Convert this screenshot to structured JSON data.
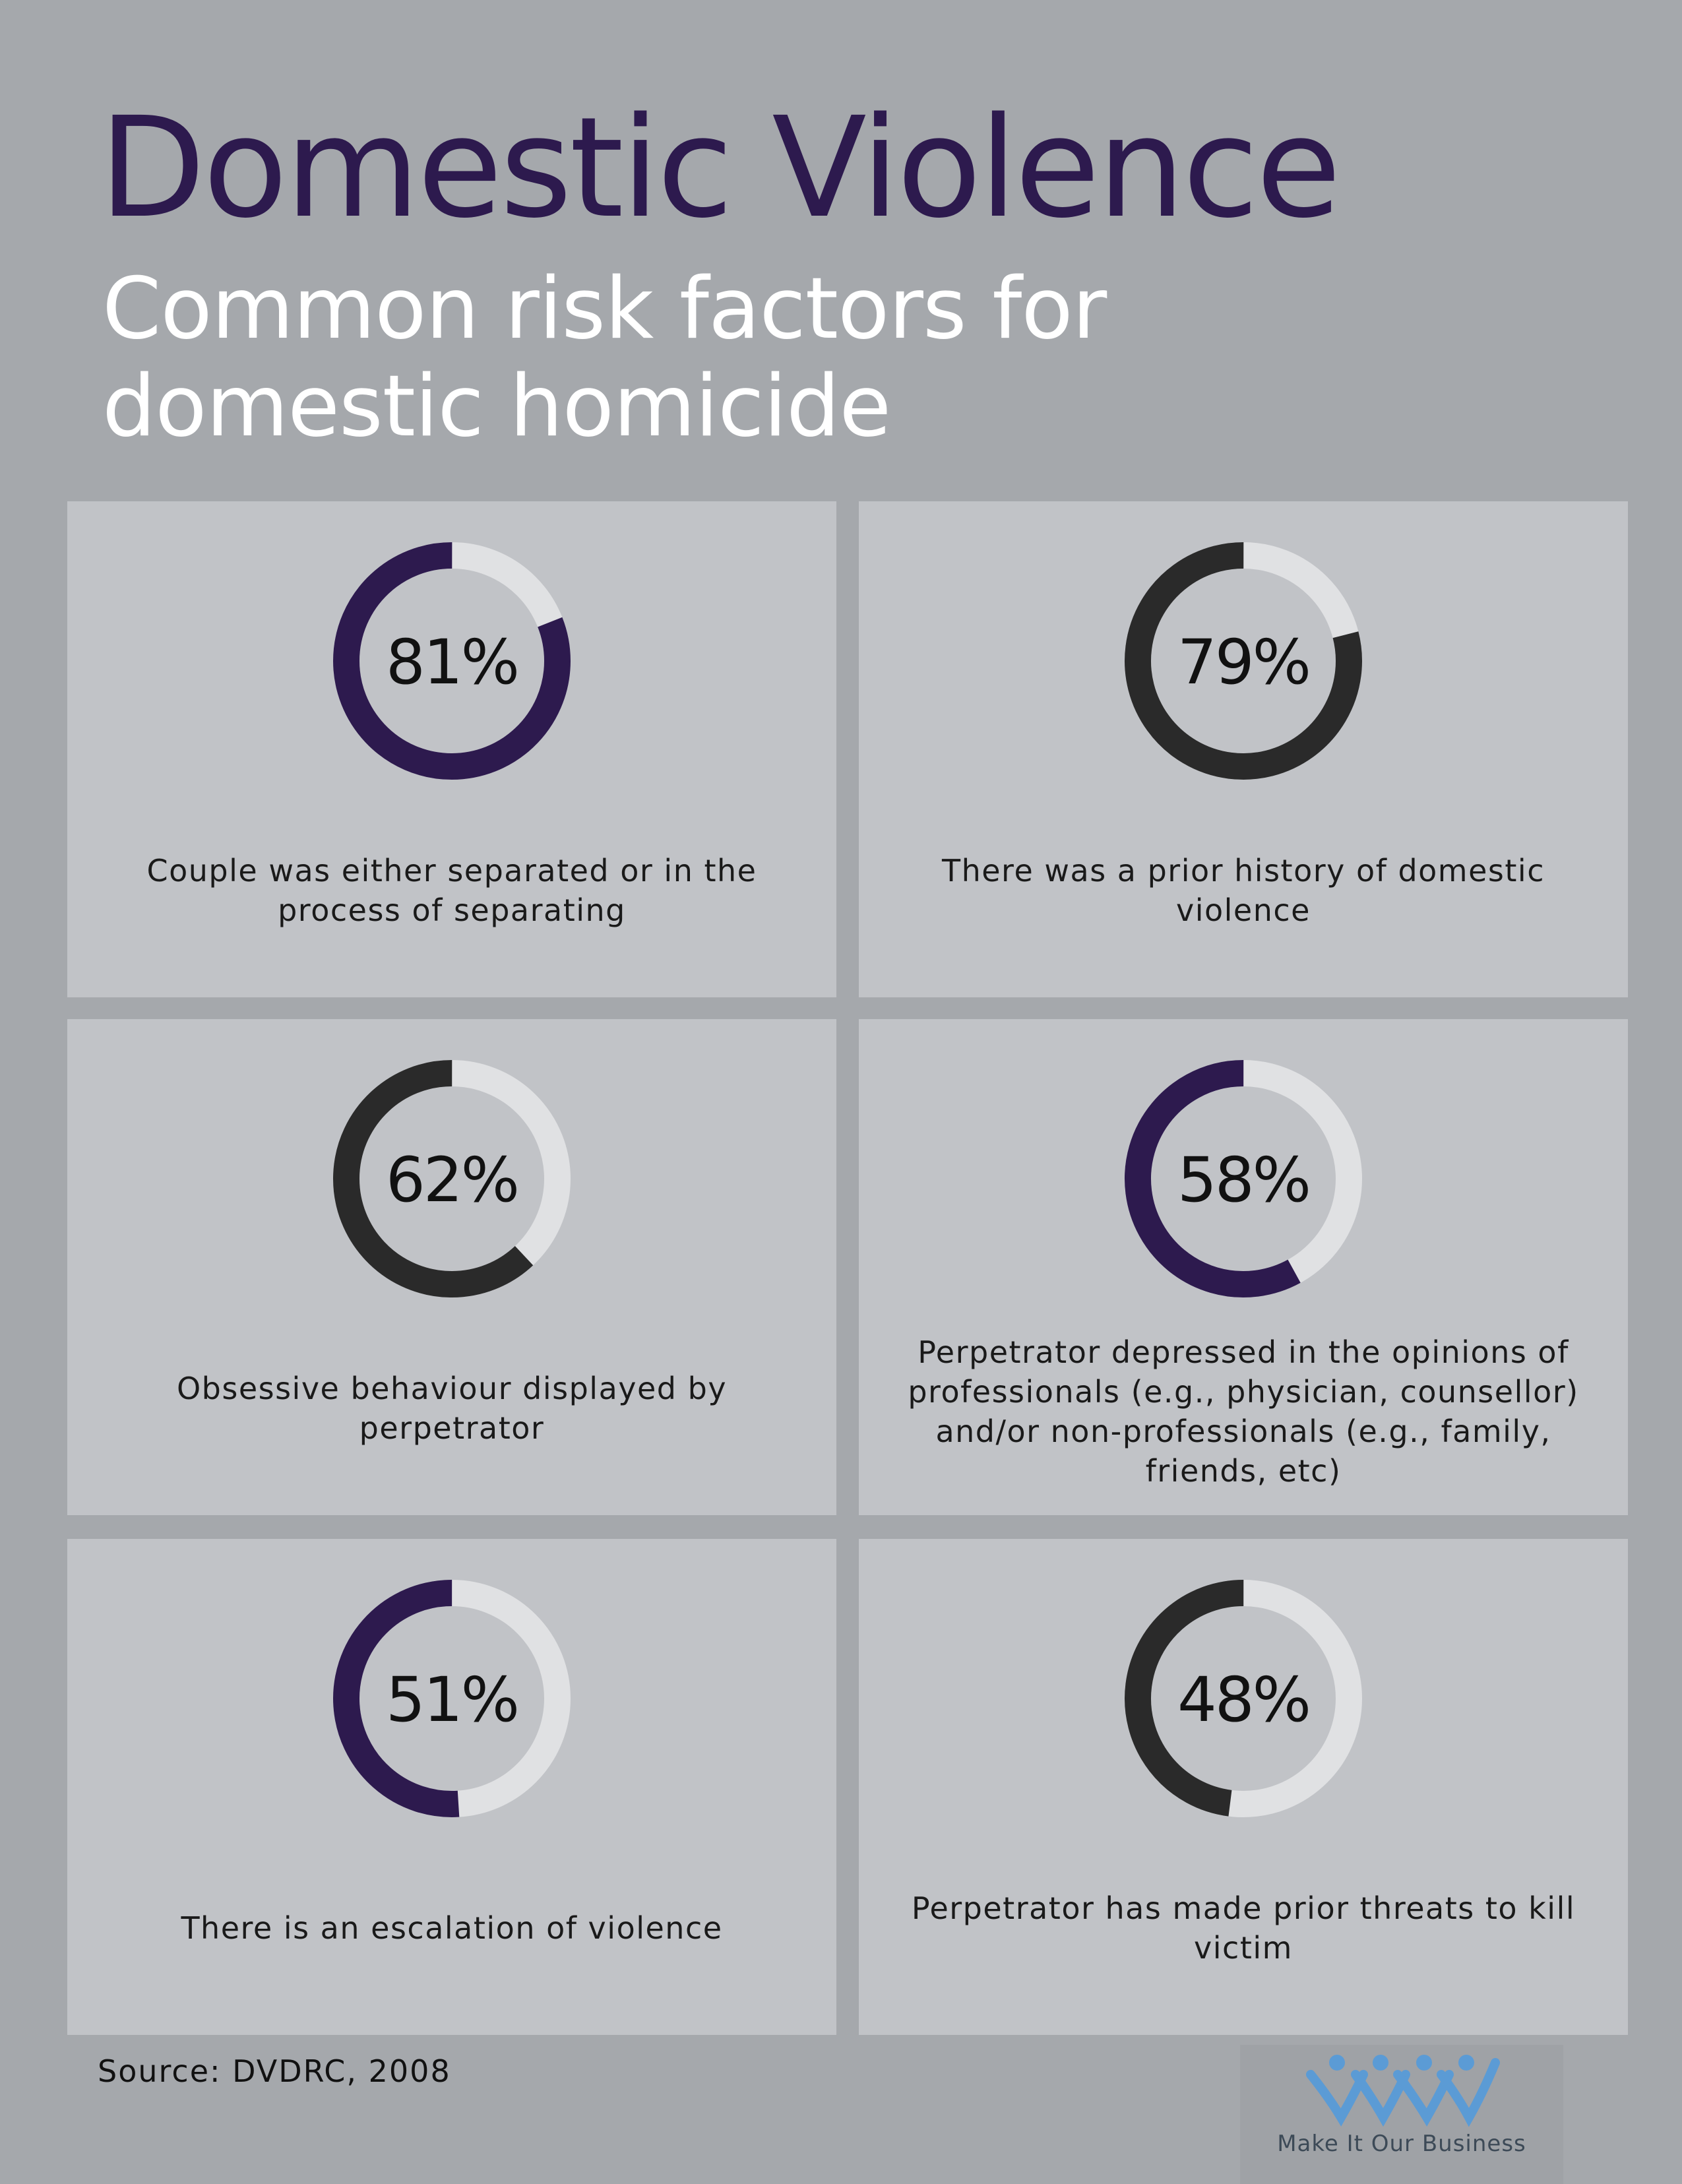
{
  "header": {
    "title": "Domestic Violence",
    "subtitle": "Common risk factors for domestic homicide"
  },
  "colors": {
    "purple": "#2d1a4e",
    "dark": "#2a2a2a",
    "track": "#e0e1e3",
    "card": "#c1c3c7",
    "background": "#a5a8ac"
  },
  "chart_data": {
    "type": "donut",
    "title": "Common risk factors for domestic homicide",
    "unit": "%",
    "items": [
      {
        "value": 81,
        "label": "81%",
        "caption": "Couple was either separated or in the process of separating",
        "color": "purple"
      },
      {
        "value": 79,
        "label": "79%",
        "caption": "There was a prior history of domestic violence",
        "color": "dark"
      },
      {
        "value": 62,
        "label": "62%",
        "caption": "Obsessive behaviour displayed by perpetrator",
        "color": "dark"
      },
      {
        "value": 58,
        "label": "58%",
        "caption": "Perpetrator depressed in the opinions of professionals (e.g., physician, counsellor) and/or non-professionals (e.g., family, friends, etc)",
        "color": "purple"
      },
      {
        "value": 51,
        "label": "51%",
        "caption": "There is an escalation of violence",
        "color": "purple"
      },
      {
        "value": 48,
        "label": "48%",
        "caption": "Perpetrator has made prior threats to kill victim",
        "color": "dark"
      }
    ]
  },
  "footer": {
    "source": "Source: DVDRC, 2008",
    "logo_text": "Make It Our Business",
    "logo_icon": "four-people-icon"
  }
}
